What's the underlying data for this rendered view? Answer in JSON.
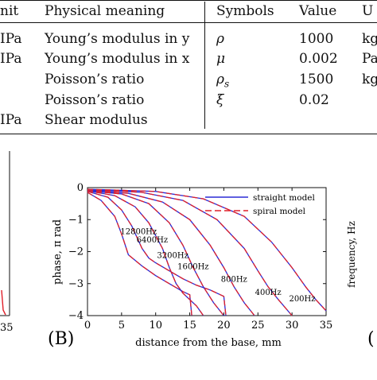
{
  "table": {
    "header": {
      "unit": "nit",
      "meaning": "Physical meaning",
      "symbols": "Symbols",
      "value": "Value",
      "unit2": "U"
    },
    "rows": [
      {
        "unit": "IPa",
        "meaning": "Young’s modulus in y",
        "symbol": "ρ",
        "value": "1000",
        "unit2": "kg"
      },
      {
        "unit": "IPa",
        "meaning": "Young’s modulus in x",
        "symbol": "μ",
        "value": "0.002",
        "unit2": "Pa"
      },
      {
        "unit": "",
        "meaning": "Poisson’s ratio",
        "symbol": "ρ",
        "symbol_sub": "s",
        "value": "1500",
        "unit2": "kg"
      },
      {
        "unit": "",
        "meaning": "Poisson’s ratio",
        "symbol": "ξ",
        "value": "0.02",
        "unit2": ""
      },
      {
        "unit": "IPa",
        "meaning": "Shear modulus",
        "symbol": "",
        "value": "",
        "unit2": ""
      }
    ]
  },
  "panels": {
    "b_label": "(B)",
    "c_label": "(",
    "left_tick": "35",
    "right_ylabel": "frequency, Hz"
  },
  "chart_data": {
    "type": "line",
    "xlabel": "distance from the base, mm",
    "ylabel": "phase, π rad",
    "xlim": [
      0,
      35
    ],
    "ylim": [
      -4,
      0
    ],
    "xticks": [
      "0",
      "5",
      "10",
      "15",
      "20",
      "25",
      "30",
      "35"
    ],
    "yticks": [
      "0",
      "−1",
      "−2",
      "−3",
      "−4"
    ],
    "legend": {
      "position": "top-right",
      "entries": [
        "straight model",
        "spiral model"
      ]
    },
    "colors": {
      "straight": "#2b2bd6",
      "spiral": "#e0202a"
    },
    "freq_labels": [
      {
        "text": "12800Hz",
        "x": 7.5,
        "y": -1.45
      },
      {
        "text": "6400Hz",
        "x": 9.5,
        "y": -1.72
      },
      {
        "text": "3200Hz",
        "x": 12.5,
        "y": -2.2
      },
      {
        "text": "1600Hz",
        "x": 15.5,
        "y": -2.55
      },
      {
        "text": "800Hz",
        "x": 21.5,
        "y": -2.95
      },
      {
        "text": "400Hz",
        "x": 26.5,
        "y": -3.35
      },
      {
        "text": "200Hz",
        "x": 31.5,
        "y": -3.55
      }
    ],
    "series": [
      {
        "label": "12800Hz",
        "x": [
          0,
          2,
          4,
          5,
          6,
          8,
          10,
          12,
          14,
          15,
          15.3
        ],
        "y": [
          -0.15,
          -0.4,
          -0.9,
          -1.45,
          -2.1,
          -2.45,
          -2.75,
          -3.0,
          -3.25,
          -3.35,
          -4
        ]
      },
      {
        "label": "6400Hz",
        "x": [
          0,
          3,
          5,
          6.5,
          8,
          9,
          10,
          12,
          14,
          16,
          18,
          19,
          20,
          20.3
        ],
        "y": [
          -0.12,
          -0.3,
          -0.7,
          -1.2,
          -1.9,
          -2.2,
          -2.35,
          -2.6,
          -2.85,
          -3.05,
          -3.2,
          -3.3,
          -3.4,
          -4
        ]
      },
      {
        "label": "3200Hz",
        "x": [
          0,
          4,
          7,
          9,
          11,
          12,
          13,
          14,
          15,
          16,
          17
        ],
        "y": [
          -0.1,
          -0.25,
          -0.6,
          -1.1,
          -1.9,
          -2.5,
          -3.0,
          -3.3,
          -3.5,
          -3.7,
          -4
        ]
      },
      {
        "label": "1600Hz",
        "x": [
          0,
          5,
          9,
          12,
          14,
          15.5,
          17,
          18.5,
          20
        ],
        "y": [
          -0.1,
          -0.2,
          -0.5,
          -1.1,
          -1.8,
          -2.5,
          -3.1,
          -3.6,
          -4
        ]
      },
      {
        "label": "800Hz",
        "x": [
          0,
          6,
          11,
          15,
          18,
          20,
          21.5,
          23,
          24.5
        ],
        "y": [
          -0.08,
          -0.18,
          -0.45,
          -1.0,
          -1.8,
          -2.5,
          -3.1,
          -3.6,
          -4
        ]
      },
      {
        "label": "400Hz",
        "x": [
          0,
          8,
          14,
          19,
          23,
          25,
          26.5,
          28,
          30
        ],
        "y": [
          -0.06,
          -0.15,
          -0.4,
          -1.0,
          -1.9,
          -2.6,
          -3.1,
          -3.5,
          -4
        ]
      },
      {
        "label": "200Hz",
        "x": [
          0,
          10,
          17,
          23,
          27,
          30,
          32,
          33.5,
          35
        ],
        "y": [
          -0.05,
          -0.12,
          -0.35,
          -0.9,
          -1.7,
          -2.5,
          -3.1,
          -3.5,
          -3.85
        ]
      }
    ]
  }
}
